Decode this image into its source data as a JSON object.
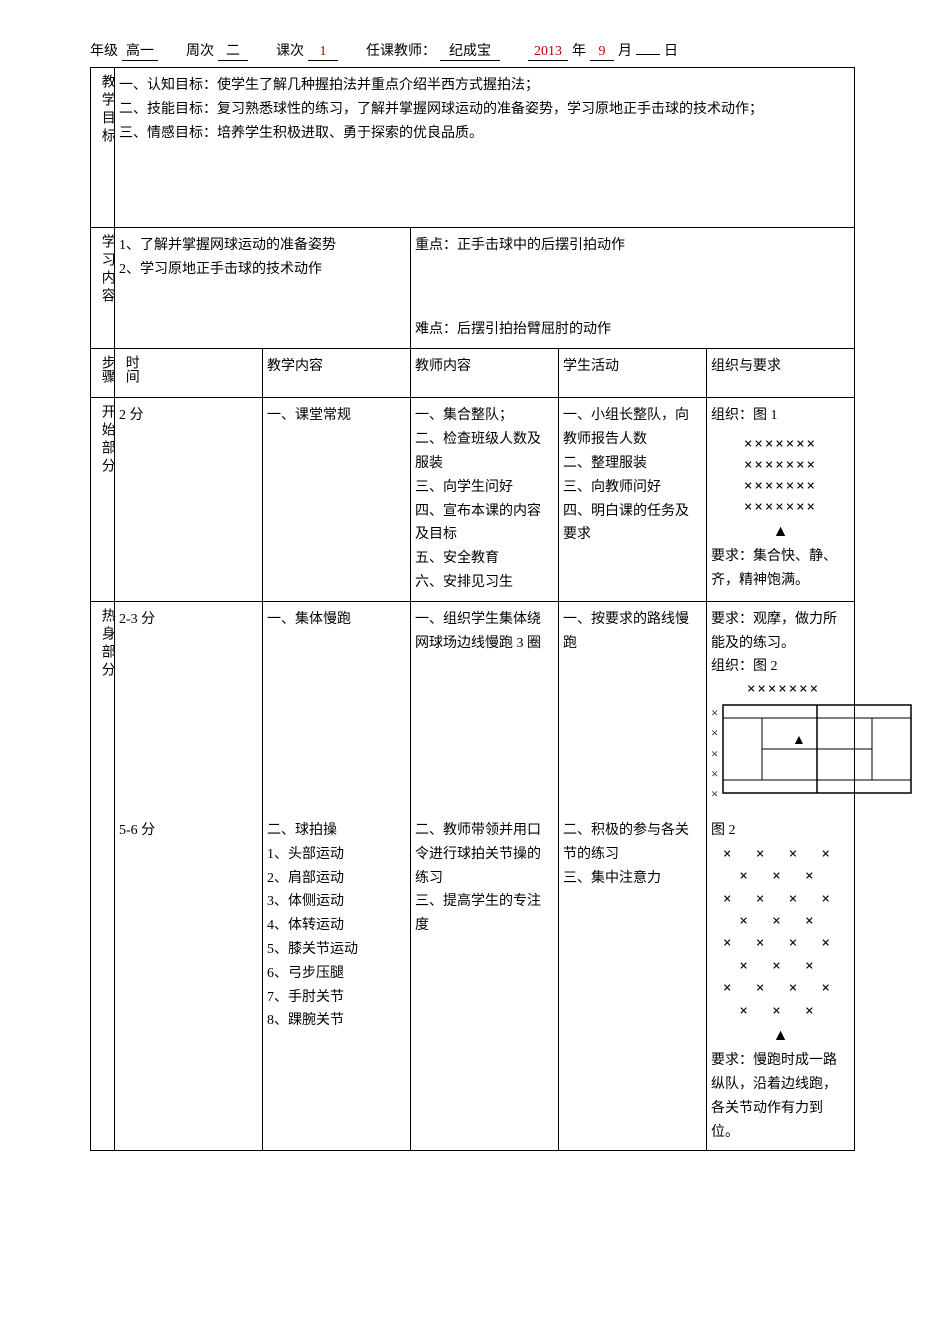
{
  "header": {
    "grade_label": "年级",
    "grade_value": "高一",
    "week_label": "周次",
    "week_value": "二",
    "lesson_label": "课次",
    "lesson_value": "1",
    "teacher_label": "任课教师：",
    "teacher_value": "纪成宝",
    "year_value": "2013",
    "year_suffix": "年",
    "month_value": "9",
    "month_suffix": "月",
    "day_value": "",
    "day_suffix": "日"
  },
  "goals": {
    "row_label": "教学目标",
    "text": "一、认知目标：使学生了解几种握拍法并重点介绍半西方式握拍法；\n二、技能目标：复习熟悉球性的练习，了解并掌握网球运动的准备姿势，学习原地正手击球的技术动作；\n三、情感目标：培养学生积极进取、勇于探索的优良品质。"
  },
  "study": {
    "row_label": "学习内容",
    "left": "1、了解并掌握网球运动的准备姿势\n2、学习原地正手击球的技术动作",
    "right_top": "重点：正手击球中的后摆引拍动作",
    "right_bottom": "难点：后摆引拍抬臂屈肘的动作"
  },
  "table_header": {
    "step": "步骤",
    "time": "时间",
    "content": "教学内容",
    "teacher": "教师内容",
    "student": "学生活动",
    "org": "组织与要求"
  },
  "sections": {
    "start": {
      "label": "开始部分",
      "time": "2 分",
      "content": "一、课堂常规",
      "teacher": "一、集合整队；\n二、检查班级人数及服装\n三、向学生问好\n四、宣布本课的内容及目标\n五、安全教育\n六、安排见习生",
      "student": "一、小组长整队，向教师报告人数\n二、整理服装\n三、向教师问好\n四、明白课的任务及要求",
      "org_title": "组织：图 1",
      "x_rows": [
        "×××××××",
        "×××××××",
        "×××××××",
        "×××××××"
      ],
      "triangle": "▲",
      "req": "要求：集合快、静、齐，精神饱满。"
    },
    "warm": {
      "label": "热身部分",
      "r1": {
        "time": "2-3 分",
        "content": "一、集体慢跑",
        "teacher": "一、组织学生集体绕网球场边线慢跑 3 圈",
        "student": "一、按要求的路线慢跑",
        "req_top": "要求：观摩，做力所能及的练习。",
        "org_title": "组织：图 2",
        "top_x": "×××××××",
        "side_x": [
          "×",
          "×",
          "×",
          "×",
          "×"
        ]
      },
      "r2": {
        "time": "5-6 分",
        "content": "二、球拍操\n1、头部运动\n2、肩部运动\n3、体侧运动\n4、体转运动\n5、膝关节运动\n6、弓步压腿\n7、手肘关节\n8、踝腕关节",
        "teacher": "二、教师带领并用口令进行球拍关节操的练习\n三、提高学生的专注度",
        "student": "二、积极的参与各关节的练习\n三、集中注意力",
        "fig_label": "图 2",
        "x_grid": [
          "× × × × × × ×",
          "× × × × × × ×",
          "× × × × × × ×",
          "× × × × × × ×"
        ],
        "triangle": "▲",
        "req": "要求：慢跑时成一路纵队，沿着边线跑，各关节动作有力到位。"
      }
    }
  },
  "colors": {
    "accent": "#c00000",
    "text": "#000000",
    "bg": "#ffffff"
  }
}
